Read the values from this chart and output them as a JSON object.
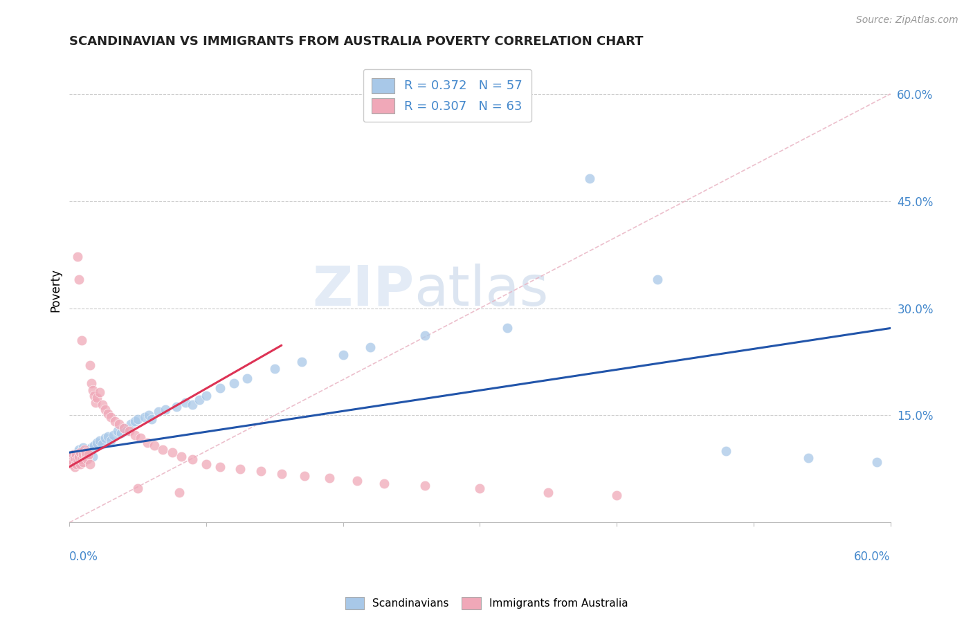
{
  "title": "SCANDINAVIAN VS IMMIGRANTS FROM AUSTRALIA POVERTY CORRELATION CHART",
  "source": "Source: ZipAtlas.com",
  "ylabel": "Poverty",
  "xlim": [
    0.0,
    0.6
  ],
  "ylim": [
    0.0,
    0.65
  ],
  "ytick_vals": [
    0.15,
    0.3,
    0.45,
    0.6
  ],
  "ytick_labels": [
    "15.0%",
    "30.0%",
    "45.0%",
    "60.0%"
  ],
  "legend1_R": "R = 0.372",
  "legend1_N": "N = 57",
  "legend2_R": "R = 0.307",
  "legend2_N": "N = 63",
  "watermark_zip": "ZIP",
  "watermark_atlas": "atlas",
  "blue_color": "#a8c8e8",
  "pink_color": "#f0a8b8",
  "blue_line_color": "#2255aa",
  "pink_line_color": "#dd3355",
  "diagonal_color": "#e8b0bb",
  "title_color": "#222222",
  "tick_color": "#4488cc",
  "source_color": "#999999",
  "scandinavian_x": [
    0.002,
    0.003,
    0.004,
    0.005,
    0.006,
    0.007,
    0.007,
    0.008,
    0.009,
    0.01,
    0.01,
    0.011,
    0.012,
    0.013,
    0.014,
    0.015,
    0.016,
    0.017,
    0.018,
    0.02,
    0.022,
    0.024,
    0.026,
    0.028,
    0.03,
    0.032,
    0.035,
    0.038,
    0.04,
    0.042,
    0.045,
    0.048,
    0.05,
    0.055,
    0.058,
    0.06,
    0.065,
    0.07,
    0.078,
    0.085,
    0.09,
    0.095,
    0.1,
    0.11,
    0.12,
    0.13,
    0.15,
    0.17,
    0.2,
    0.22,
    0.26,
    0.32,
    0.38,
    0.43,
    0.48,
    0.54,
    0.59
  ],
  "scandinavian_y": [
    0.09,
    0.095,
    0.088,
    0.092,
    0.098,
    0.085,
    0.102,
    0.095,
    0.1,
    0.092,
    0.105,
    0.098,
    0.088,
    0.095,
    0.102,
    0.098,
    0.105,
    0.092,
    0.108,
    0.112,
    0.115,
    0.11,
    0.118,
    0.12,
    0.115,
    0.122,
    0.128,
    0.125,
    0.132,
    0.128,
    0.138,
    0.142,
    0.145,
    0.148,
    0.15,
    0.145,
    0.155,
    0.158,
    0.162,
    0.168,
    0.165,
    0.172,
    0.178,
    0.188,
    0.195,
    0.202,
    0.215,
    0.225,
    0.235,
    0.245,
    0.262,
    0.272,
    0.482,
    0.34,
    0.1,
    0.09,
    0.085
  ],
  "australia_x": [
    0.001,
    0.002,
    0.002,
    0.003,
    0.003,
    0.004,
    0.004,
    0.005,
    0.005,
    0.006,
    0.006,
    0.007,
    0.007,
    0.008,
    0.008,
    0.009,
    0.009,
    0.01,
    0.01,
    0.011,
    0.012,
    0.012,
    0.013,
    0.014,
    0.015,
    0.015,
    0.016,
    0.017,
    0.018,
    0.019,
    0.02,
    0.022,
    0.024,
    0.026,
    0.028,
    0.03,
    0.033,
    0.036,
    0.04,
    0.044,
    0.048,
    0.052,
    0.057,
    0.062,
    0.068,
    0.075,
    0.082,
    0.09,
    0.1,
    0.11,
    0.125,
    0.14,
    0.155,
    0.172,
    0.19,
    0.21,
    0.23,
    0.26,
    0.3,
    0.35,
    0.4,
    0.05,
    0.08
  ],
  "australia_y": [
    0.088,
    0.092,
    0.082,
    0.095,
    0.085,
    0.09,
    0.078,
    0.095,
    0.082,
    0.372,
    0.088,
    0.34,
    0.092,
    0.098,
    0.082,
    0.255,
    0.088,
    0.095,
    0.085,
    0.102,
    0.092,
    0.098,
    0.088,
    0.095,
    0.082,
    0.22,
    0.195,
    0.185,
    0.178,
    0.168,
    0.175,
    0.182,
    0.165,
    0.158,
    0.152,
    0.148,
    0.142,
    0.138,
    0.132,
    0.128,
    0.122,
    0.118,
    0.112,
    0.108,
    0.102,
    0.098,
    0.092,
    0.088,
    0.082,
    0.078,
    0.075,
    0.072,
    0.068,
    0.065,
    0.062,
    0.058,
    0.055,
    0.052,
    0.048,
    0.042,
    0.038,
    0.048,
    0.042
  ],
  "blue_line_x0": 0.0,
  "blue_line_y0": 0.098,
  "blue_line_x1": 0.6,
  "blue_line_y1": 0.272,
  "pink_line_x0": 0.0,
  "pink_line_y0": 0.078,
  "pink_line_x1": 0.155,
  "pink_line_y1": 0.248
}
